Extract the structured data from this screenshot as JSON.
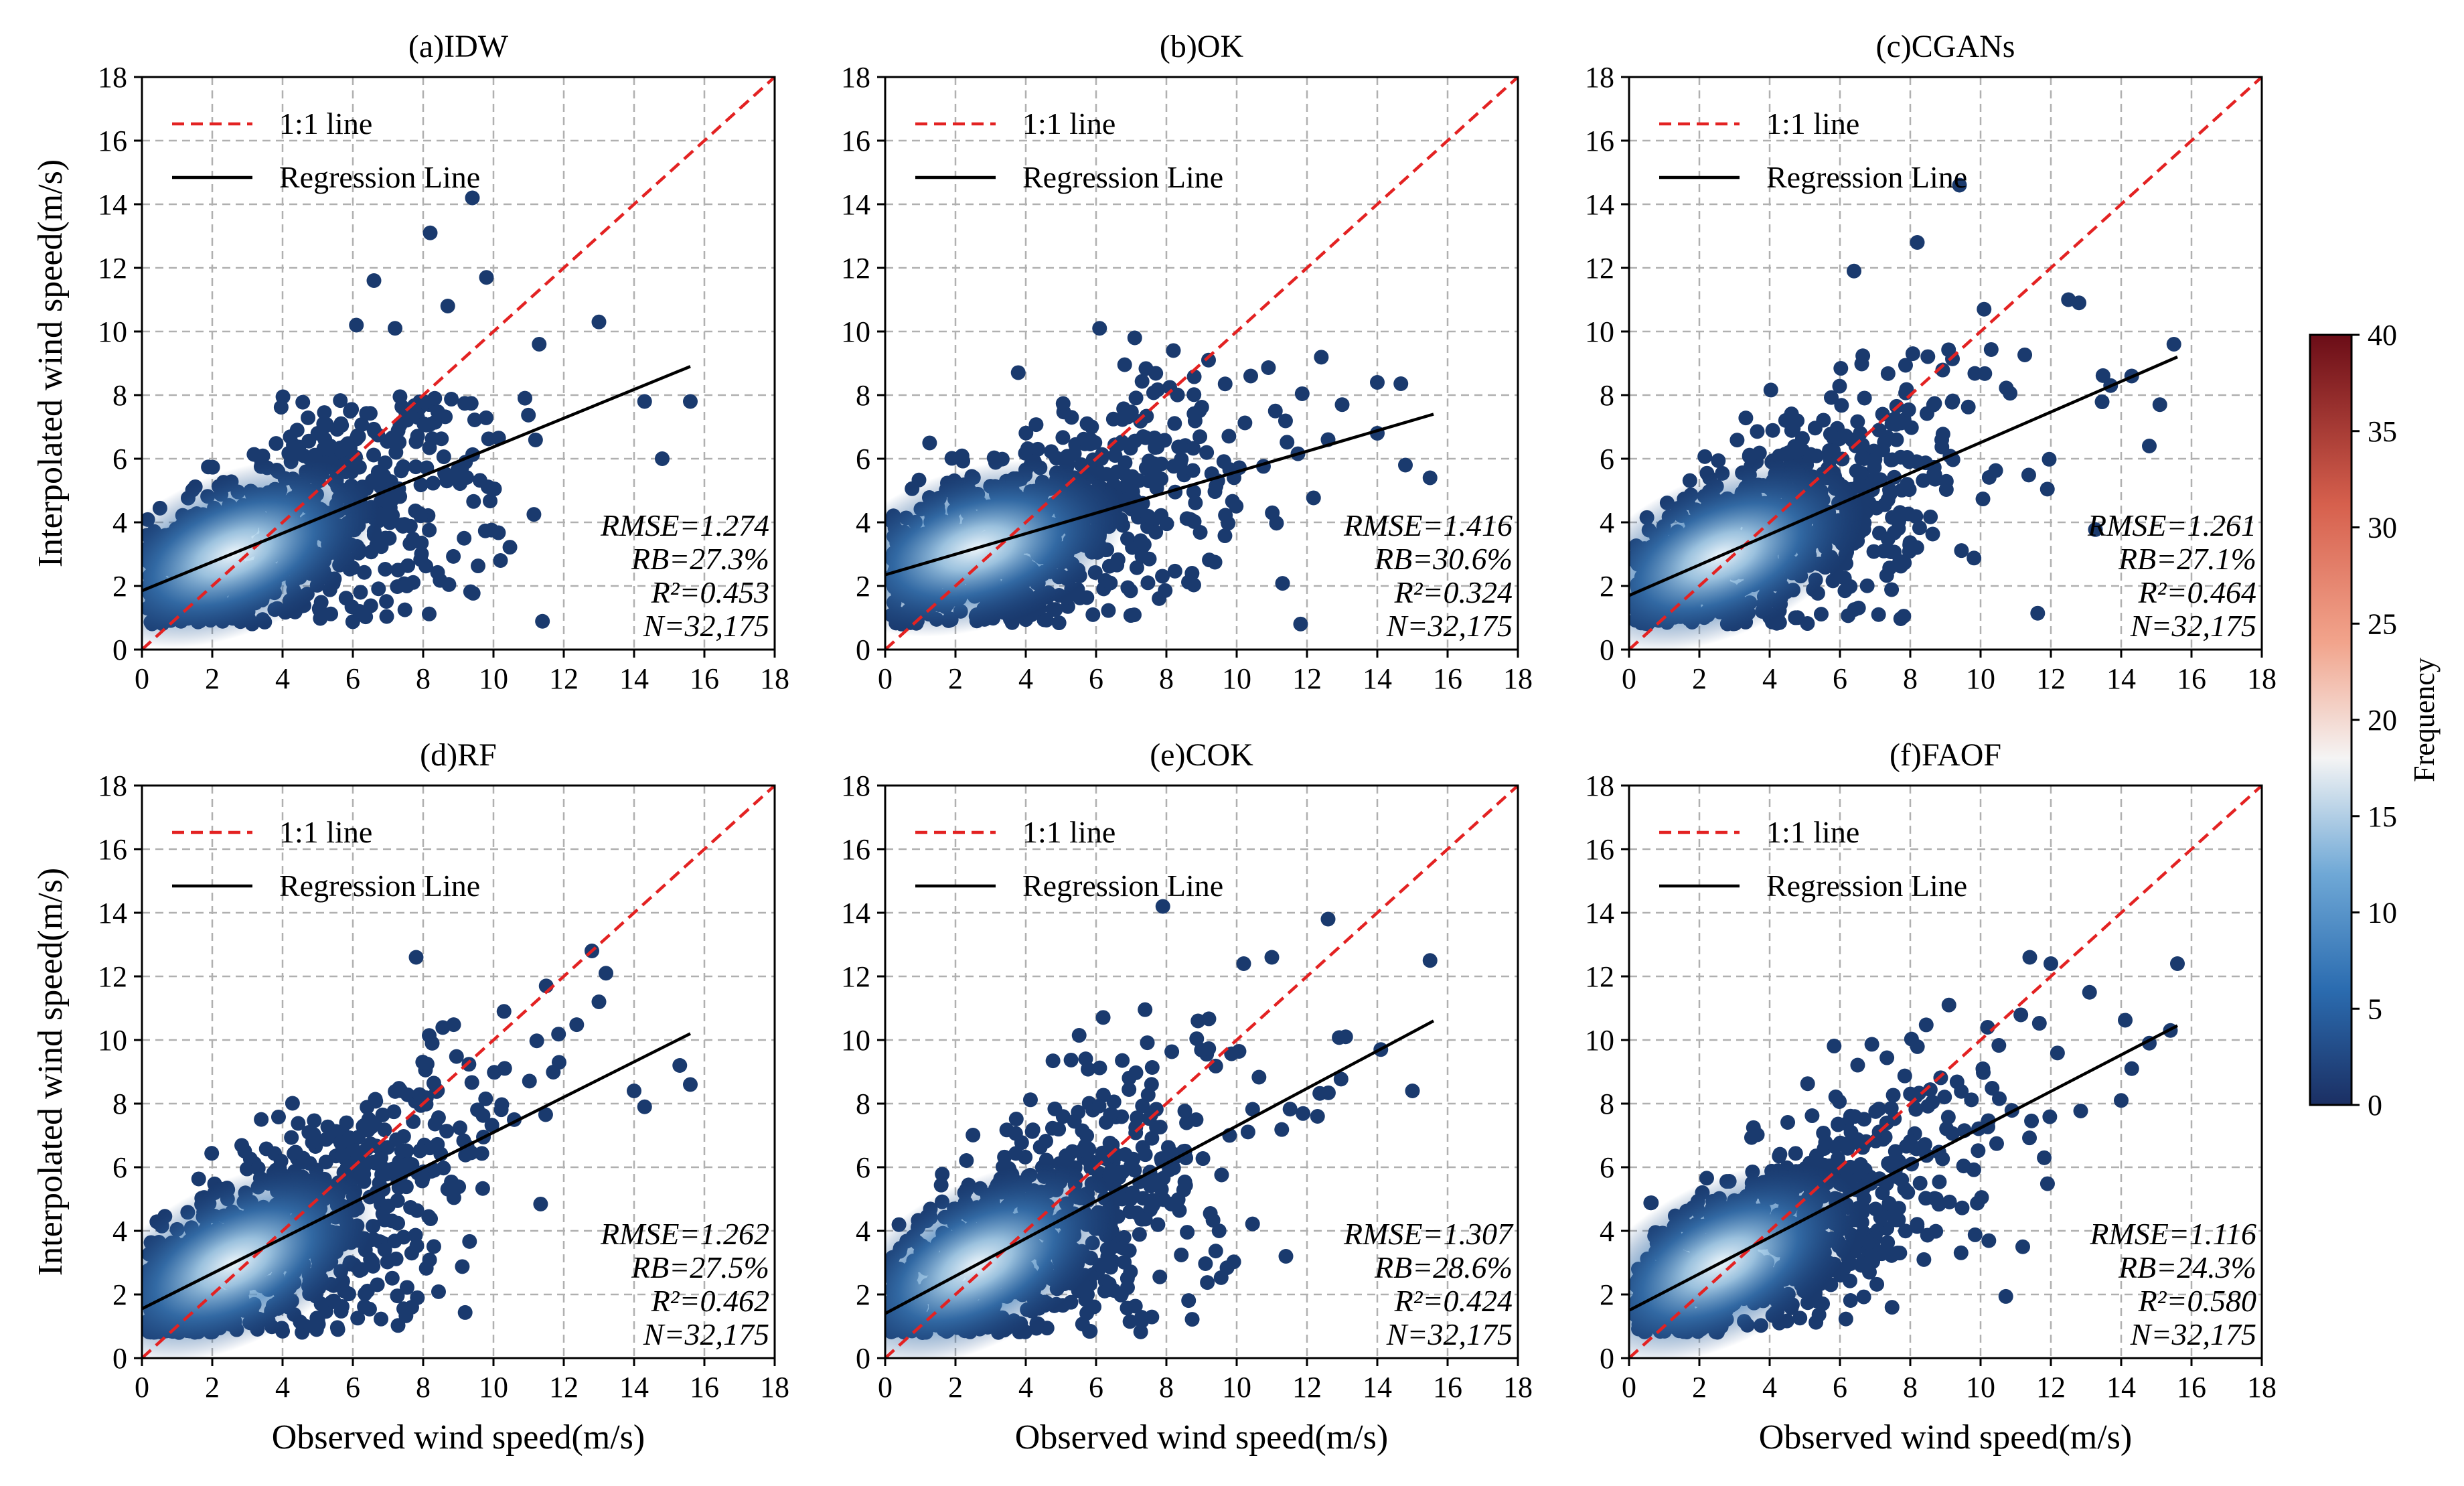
{
  "chart_data": {
    "type": "scatter",
    "xlabel": "Observed wind speed(m/s)",
    "ylabel": "Interpolated wind speed(m/s)",
    "xlim": [
      0,
      18
    ],
    "ylim": [
      0,
      18
    ],
    "xticks": [
      "0",
      "2",
      "4",
      "6",
      "8",
      "10",
      "12",
      "14",
      "16",
      "18"
    ],
    "yticks": [
      "0",
      "2",
      "4",
      "6",
      "8",
      "10",
      "12",
      "14",
      "16",
      "18"
    ],
    "grid": true,
    "legend": {
      "placement": "top-left",
      "entries": [
        {
          "label": "1:1 line",
          "color": "#e32222",
          "style": "dashed"
        },
        {
          "label": "Regression Line",
          "color": "#000000",
          "style": "solid"
        }
      ]
    },
    "colorbar": {
      "label": "Frequency",
      "ticks": [
        "0",
        "5",
        "10",
        "15",
        "20",
        "25",
        "30",
        "35",
        "40"
      ],
      "range": [
        0,
        40
      ],
      "colormap": [
        "#1b2f63",
        "#2b6cb0",
        "#6fa8d6",
        "#f4f4f4",
        "#f2a48c",
        "#d6604d",
        "#6b0d17"
      ]
    },
    "panels": [
      {
        "title": "(a)IDW",
        "regression": {
          "x": [
            0,
            15.6
          ],
          "y": [
            1.85,
            8.9
          ]
        },
        "stats": [
          "RMSE=1.274",
          "RB=27.3%",
          "R²=0.453",
          "N=32,175"
        ],
        "cloud": {
          "x_spread": 2.3,
          "y_spread": 1.35,
          "slope": 0.45,
          "intercept": 1.85,
          "x_max": 15.6,
          "y_cap": 8.0
        },
        "outliers": [
          [
            8.2,
            13.1
          ],
          [
            9.4,
            14.2
          ],
          [
            6.6,
            11.6
          ],
          [
            9.8,
            11.7
          ],
          [
            13,
            10.3
          ],
          [
            8.7,
            10.8
          ],
          [
            11.3,
            9.6
          ],
          [
            14.3,
            7.8
          ],
          [
            14.8,
            6.0
          ],
          [
            15.6,
            7.8
          ],
          [
            10.2,
            2.8
          ],
          [
            6.1,
            10.2
          ],
          [
            7.2,
            10.1
          ]
        ]
      },
      {
        "title": "(b)OK",
        "regression": {
          "x": [
            0,
            15.6
          ],
          "y": [
            2.35,
            7.4
          ]
        },
        "stats": [
          "RMSE=1.416",
          "RB=30.6%",
          "R²=0.324",
          "N=32,175"
        ],
        "cloud": {
          "x_spread": 2.5,
          "y_spread": 1.25,
          "slope": 0.32,
          "intercept": 2.35,
          "x_max": 15.6,
          "y_cap": 9.5
        },
        "outliers": [
          [
            6.1,
            10.1
          ],
          [
            7.1,
            9.8
          ],
          [
            8.2,
            9.4
          ],
          [
            9.2,
            9.1
          ],
          [
            10.4,
            8.6
          ],
          [
            13,
            7.7
          ],
          [
            14,
            6.8
          ],
          [
            15.5,
            5.4
          ],
          [
            14.8,
            5.8
          ],
          [
            11.1,
            7.5
          ],
          [
            14,
            8.4
          ],
          [
            12.6,
            6.6
          ]
        ]
      },
      {
        "title": "(c)CGANs",
        "regression": {
          "x": [
            0,
            15.6
          ],
          "y": [
            1.7,
            9.2
          ]
        },
        "stats": [
          "RMSE=1.261",
          "RB=27.1%",
          "R²=0.464",
          "N=32,175"
        ],
        "cloud": {
          "x_spread": 2.3,
          "y_spread": 1.3,
          "slope": 0.48,
          "intercept": 1.7,
          "x_max": 15.6,
          "y_cap": 9.5
        },
        "outliers": [
          [
            8.2,
            12.8
          ],
          [
            9.4,
            14.6
          ],
          [
            6.4,
            11.9
          ],
          [
            12.5,
            11
          ],
          [
            12.8,
            10.9
          ],
          [
            15.5,
            9.6
          ],
          [
            14.3,
            8.6
          ],
          [
            14.8,
            6.4
          ],
          [
            10.1,
            10.7
          ],
          [
            13.7,
            8.3
          ],
          [
            15.1,
            7.7
          ]
        ]
      },
      {
        "title": "(d)RF",
        "regression": {
          "x": [
            0,
            15.6
          ],
          "y": [
            1.55,
            10.2
          ]
        },
        "stats": [
          "RMSE=1.262",
          "RB=27.5%",
          "R²=0.462",
          "N=32,175"
        ],
        "cloud": {
          "x_spread": 2.5,
          "y_spread": 1.45,
          "slope": 0.55,
          "intercept": 1.55,
          "x_max": 15.6,
          "y_cap": 10.5
        },
        "outliers": [
          [
            7.8,
            12.6
          ],
          [
            12.8,
            12.8
          ],
          [
            11.5,
            11.7
          ],
          [
            13.2,
            12.1
          ],
          [
            15.3,
            9.2
          ],
          [
            14.3,
            7.9
          ],
          [
            15.6,
            8.6
          ],
          [
            13,
            11.2
          ],
          [
            10.3,
            10.9
          ],
          [
            14,
            8.4
          ]
        ]
      },
      {
        "title": "(e)COK",
        "regression": {
          "x": [
            0,
            15.6
          ],
          "y": [
            1.4,
            10.6
          ]
        },
        "stats": [
          "RMSE=1.307",
          "RB=28.6%",
          "R²=0.424",
          "N=32,175"
        ],
        "cloud": {
          "x_spread": 2.4,
          "y_spread": 1.55,
          "slope": 0.59,
          "intercept": 1.4,
          "x_max": 15.6,
          "y_cap": 11
        },
        "outliers": [
          [
            7.9,
            14.2
          ],
          [
            12.6,
            13.8
          ],
          [
            11,
            12.6
          ],
          [
            10.2,
            12.4
          ],
          [
            15.5,
            12.5
          ],
          [
            13.1,
            10.1
          ],
          [
            9.5,
            4
          ],
          [
            11.4,
            3.2
          ],
          [
            15,
            8.4
          ],
          [
            12.3,
            7.6
          ],
          [
            14.1,
            9.7
          ],
          [
            8.9,
            10.6
          ]
        ]
      },
      {
        "title": "(f)FAOF",
        "regression": {
          "x": [
            0,
            15.6
          ],
          "y": [
            1.5,
            10.45
          ]
        },
        "stats": [
          "RMSE=1.116",
          "RB=24.3%",
          "R²=0.580",
          "N=32,175"
        ],
        "cloud": {
          "x_spread": 2.3,
          "y_spread": 1.25,
          "slope": 0.57,
          "intercept": 1.5,
          "x_max": 15.6,
          "y_cap": 11
        },
        "outliers": [
          [
            11.4,
            12.6
          ],
          [
            12,
            12.4
          ],
          [
            15.6,
            12.4
          ],
          [
            13.1,
            11.5
          ],
          [
            14.8,
            9.9
          ],
          [
            11.2,
            3.5
          ],
          [
            14.3,
            9.1
          ],
          [
            10.2,
            10.4
          ],
          [
            9.1,
            11.1
          ],
          [
            15.4,
            10.3
          ],
          [
            14,
            8.1
          ]
        ]
      }
    ]
  }
}
